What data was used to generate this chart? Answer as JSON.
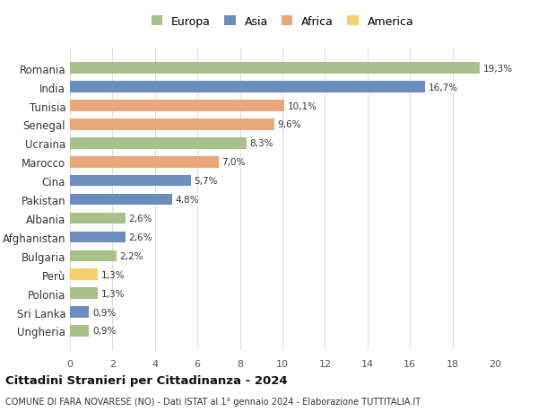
{
  "countries": [
    "Romania",
    "India",
    "Tunisia",
    "Senegal",
    "Ucraina",
    "Marocco",
    "Cina",
    "Pakistan",
    "Albania",
    "Afghanistan",
    "Bulgaria",
    "Perù",
    "Polonia",
    "Sri Lanka",
    "Ungheria"
  ],
  "values": [
    19.3,
    16.7,
    10.1,
    9.6,
    8.3,
    7.0,
    5.7,
    4.8,
    2.6,
    2.6,
    2.2,
    1.3,
    1.3,
    0.9,
    0.9
  ],
  "continents": [
    "Europa",
    "Asia",
    "Africa",
    "Africa",
    "Europa",
    "Africa",
    "Asia",
    "Asia",
    "Europa",
    "Asia",
    "Europa",
    "America",
    "Europa",
    "Asia",
    "Europa"
  ],
  "colors": {
    "Europa": "#a8c08a",
    "Asia": "#6b8ebf",
    "Africa": "#e8a87c",
    "America": "#f5d06e"
  },
  "legend_order": [
    "Europa",
    "Asia",
    "Africa",
    "America"
  ],
  "title": "Cittadini Stranieri per Cittadinanza - 2024",
  "subtitle": "COMUNE DI FARA NOVARESE (NO) - Dati ISTAT al 1° gennaio 2024 - Elaborazione TUTTITALIA.IT",
  "xlim": [
    0,
    20
  ],
  "xticks": [
    0,
    2,
    4,
    6,
    8,
    10,
    12,
    14,
    16,
    18,
    20
  ],
  "bar_height": 0.6,
  "background_color": "#ffffff",
  "grid_color": "#dddddd"
}
